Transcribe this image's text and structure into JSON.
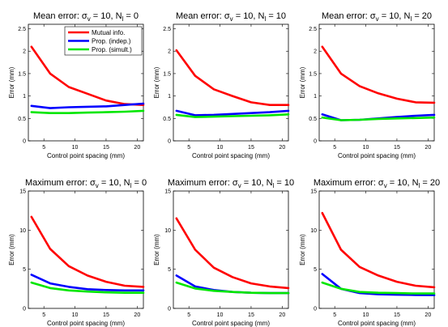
{
  "chart_data": [
    {
      "type": "line",
      "title": "Mean error: σ_v = 10, N_l = 0",
      "title_parts": {
        "prefix": "Mean error: σ",
        "sub1": "v",
        "mid": " = 10, N",
        "sub2": "l",
        "suffix": " = 0"
      },
      "xlabel": "Control point spacing (mm)",
      "ylabel": "Error (mm)",
      "xlim": [
        2.5,
        21
      ],
      "ylim": [
        0,
        2.6
      ],
      "xticks": [
        "5",
        "10",
        "15",
        "20"
      ],
      "yticks": [
        "0",
        "0.5",
        "1",
        "1.5",
        "2",
        "2.5"
      ],
      "legend": {
        "placement": "top-right",
        "entries": [
          "Mutual info.",
          "Prop. (indep.)",
          "Prop. (simult.)"
        ]
      },
      "series": [
        {
          "name": "Mutual info.",
          "color": "#ff0000",
          "x": [
            3,
            6,
            9,
            12,
            15,
            18,
            21
          ],
          "y": [
            2.1,
            1.5,
            1.2,
            1.05,
            0.9,
            0.82,
            0.8
          ]
        },
        {
          "name": "Prop. (indep.)",
          "color": "#0000ff",
          "x": [
            3,
            6,
            9,
            12,
            15,
            18,
            21
          ],
          "y": [
            0.78,
            0.73,
            0.75,
            0.76,
            0.77,
            0.8,
            0.83
          ]
        },
        {
          "name": "Prop. (simult.)",
          "color": "#00e600",
          "x": [
            3,
            6,
            9,
            12,
            15,
            18,
            21
          ],
          "y": [
            0.64,
            0.62,
            0.62,
            0.63,
            0.64,
            0.65,
            0.67
          ]
        }
      ]
    },
    {
      "type": "line",
      "title": "Mean error: σ_v = 10, N_l = 10",
      "title_parts": {
        "prefix": "Mean error: σ",
        "sub1": "v",
        "mid": " = 10, N",
        "sub2": "l",
        "suffix": " = 10"
      },
      "xlabel": "Control point spacing (mm)",
      "ylabel": "Error (mm)",
      "xlim": [
        2.5,
        21
      ],
      "ylim": [
        0,
        2.6
      ],
      "xticks": [
        "5",
        "10",
        "15",
        "20"
      ],
      "yticks": [
        "0",
        "0.5",
        "1",
        "1.5",
        "2",
        "2.5"
      ],
      "series": [
        {
          "name": "Mutual info.",
          "color": "#ff0000",
          "x": [
            3,
            6,
            9,
            12,
            15,
            18,
            21
          ],
          "y": [
            2.02,
            1.45,
            1.15,
            1.0,
            0.86,
            0.8,
            0.8
          ]
        },
        {
          "name": "Prop. (indep.)",
          "color": "#0000ff",
          "x": [
            3,
            6,
            9,
            12,
            15,
            18,
            21
          ],
          "y": [
            0.67,
            0.57,
            0.58,
            0.6,
            0.62,
            0.64,
            0.67
          ]
        },
        {
          "name": "Prop. (simult.)",
          "color": "#00e600",
          "x": [
            3,
            6,
            9,
            12,
            15,
            18,
            21
          ],
          "y": [
            0.58,
            0.53,
            0.54,
            0.55,
            0.56,
            0.57,
            0.59
          ]
        }
      ]
    },
    {
      "type": "line",
      "title": "Mean error: σ_v = 10, N_l = 20",
      "title_parts": {
        "prefix": "Mean error: σ",
        "sub1": "v",
        "mid": " = 10, N",
        "sub2": "l",
        "suffix": " = 20"
      },
      "xlabel": "Control point spacing (mm)",
      "ylabel": "Error (mm)",
      "xlim": [
        2.5,
        21
      ],
      "ylim": [
        0,
        2.6
      ],
      "xticks": [
        "5",
        "10",
        "15",
        "20"
      ],
      "yticks": [
        "0",
        "0.5",
        "1",
        "1.5",
        "2",
        "2.5"
      ],
      "series": [
        {
          "name": "Mutual info.",
          "color": "#ff0000",
          "x": [
            3,
            6,
            9,
            12,
            15,
            18,
            21
          ],
          "y": [
            2.1,
            1.5,
            1.22,
            1.06,
            0.94,
            0.86,
            0.85
          ]
        },
        {
          "name": "Prop. (indep.)",
          "color": "#0000ff",
          "x": [
            3,
            6,
            9,
            12,
            15,
            18,
            21
          ],
          "y": [
            0.59,
            0.46,
            0.47,
            0.5,
            0.53,
            0.56,
            0.58
          ]
        },
        {
          "name": "Prop. (simult.)",
          "color": "#00e600",
          "x": [
            3,
            6,
            9,
            12,
            15,
            18,
            21
          ],
          "y": [
            0.52,
            0.46,
            0.47,
            0.49,
            0.5,
            0.51,
            0.52
          ]
        }
      ]
    },
    {
      "type": "line",
      "title": "Maximum error: σ_v = 10, N_l = 0",
      "title_parts": {
        "prefix": "Maximum error: σ",
        "sub1": "v",
        "mid": " = 10, N",
        "sub2": "l",
        "suffix": " = 0"
      },
      "xlabel": "Control point spacing (mm)",
      "ylabel": "Error (mm)",
      "xlim": [
        2.5,
        21
      ],
      "ylim": [
        0,
        15
      ],
      "xticks": [
        "5",
        "10",
        "15",
        "20"
      ],
      "yticks": [
        "0",
        "5",
        "10",
        "15"
      ],
      "series": [
        {
          "name": "Mutual info.",
          "color": "#ff0000",
          "x": [
            3,
            6,
            9,
            12,
            15,
            18,
            21
          ],
          "y": [
            11.7,
            7.6,
            5.4,
            4.2,
            3.4,
            2.9,
            2.75
          ]
        },
        {
          "name": "Prop. (indep.)",
          "color": "#0000ff",
          "x": [
            3,
            6,
            9,
            12,
            15,
            18,
            21
          ],
          "y": [
            4.3,
            3.2,
            2.75,
            2.45,
            2.35,
            2.3,
            2.3
          ]
        },
        {
          "name": "Prop. (simult.)",
          "color": "#00e600",
          "x": [
            3,
            6,
            9,
            12,
            15,
            18,
            21
          ],
          "y": [
            3.3,
            2.6,
            2.3,
            2.15,
            2.05,
            2.0,
            2.0
          ]
        }
      ]
    },
    {
      "type": "line",
      "title": "Maximum error: σ_v = 10, N_l = 10",
      "title_parts": {
        "prefix": "Maximum error: σ",
        "sub1": "v",
        "mid": " = 10, N",
        "sub2": "l",
        "suffix": " = 10"
      },
      "xlabel": "Control point spacing (mm)",
      "ylabel": "Error (mm)",
      "xlim": [
        2.5,
        21
      ],
      "ylim": [
        0,
        15
      ],
      "xticks": [
        "5",
        "10",
        "15",
        "20"
      ],
      "yticks": [
        "0",
        "5",
        "10",
        "15"
      ],
      "series": [
        {
          "name": "Mutual info.",
          "color": "#ff0000",
          "x": [
            3,
            6,
            9,
            12,
            15,
            18,
            21
          ],
          "y": [
            11.5,
            7.5,
            5.2,
            4.0,
            3.2,
            2.8,
            2.6
          ]
        },
        {
          "name": "Prop. (indep.)",
          "color": "#0000ff",
          "x": [
            3,
            6,
            9,
            12,
            15,
            18,
            21
          ],
          "y": [
            4.2,
            2.8,
            2.35,
            2.1,
            2.0,
            1.95,
            1.95
          ]
        },
        {
          "name": "Prop. (simult.)",
          "color": "#00e600",
          "x": [
            3,
            6,
            9,
            12,
            15,
            18,
            21
          ],
          "y": [
            3.3,
            2.55,
            2.25,
            2.1,
            2.0,
            1.95,
            1.95
          ]
        }
      ]
    },
    {
      "type": "line",
      "title": "Maximum error: σ_v = 10, N_l = 20",
      "title_parts": {
        "prefix": "Maximum error: σ",
        "sub1": "v",
        "mid": " = 10, N",
        "sub2": "l",
        "suffix": " = 20"
      },
      "xlabel": "Control point spacing (mm)",
      "ylabel": "Error (mm)",
      "xlim": [
        2.5,
        21
      ],
      "ylim": [
        0,
        15
      ],
      "xticks": [
        "5",
        "10",
        "15",
        "20"
      ],
      "yticks": [
        "0",
        "5",
        "10",
        "15"
      ],
      "series": [
        {
          "name": "Mutual info.",
          "color": "#ff0000",
          "x": [
            3,
            6,
            9,
            12,
            15,
            18,
            21
          ],
          "y": [
            12.2,
            7.5,
            5.3,
            4.2,
            3.4,
            2.9,
            2.7
          ]
        },
        {
          "name": "Prop. (indep.)",
          "color": "#0000ff",
          "x": [
            3,
            6,
            9,
            12,
            15,
            18,
            21
          ],
          "y": [
            4.4,
            2.5,
            1.95,
            1.8,
            1.75,
            1.72,
            1.7
          ]
        },
        {
          "name": "Prop. (simult.)",
          "color": "#00e600",
          "x": [
            3,
            6,
            9,
            12,
            15,
            18,
            21
          ],
          "y": [
            3.3,
            2.5,
            2.1,
            2.0,
            1.95,
            1.9,
            1.9
          ]
        }
      ]
    }
  ]
}
